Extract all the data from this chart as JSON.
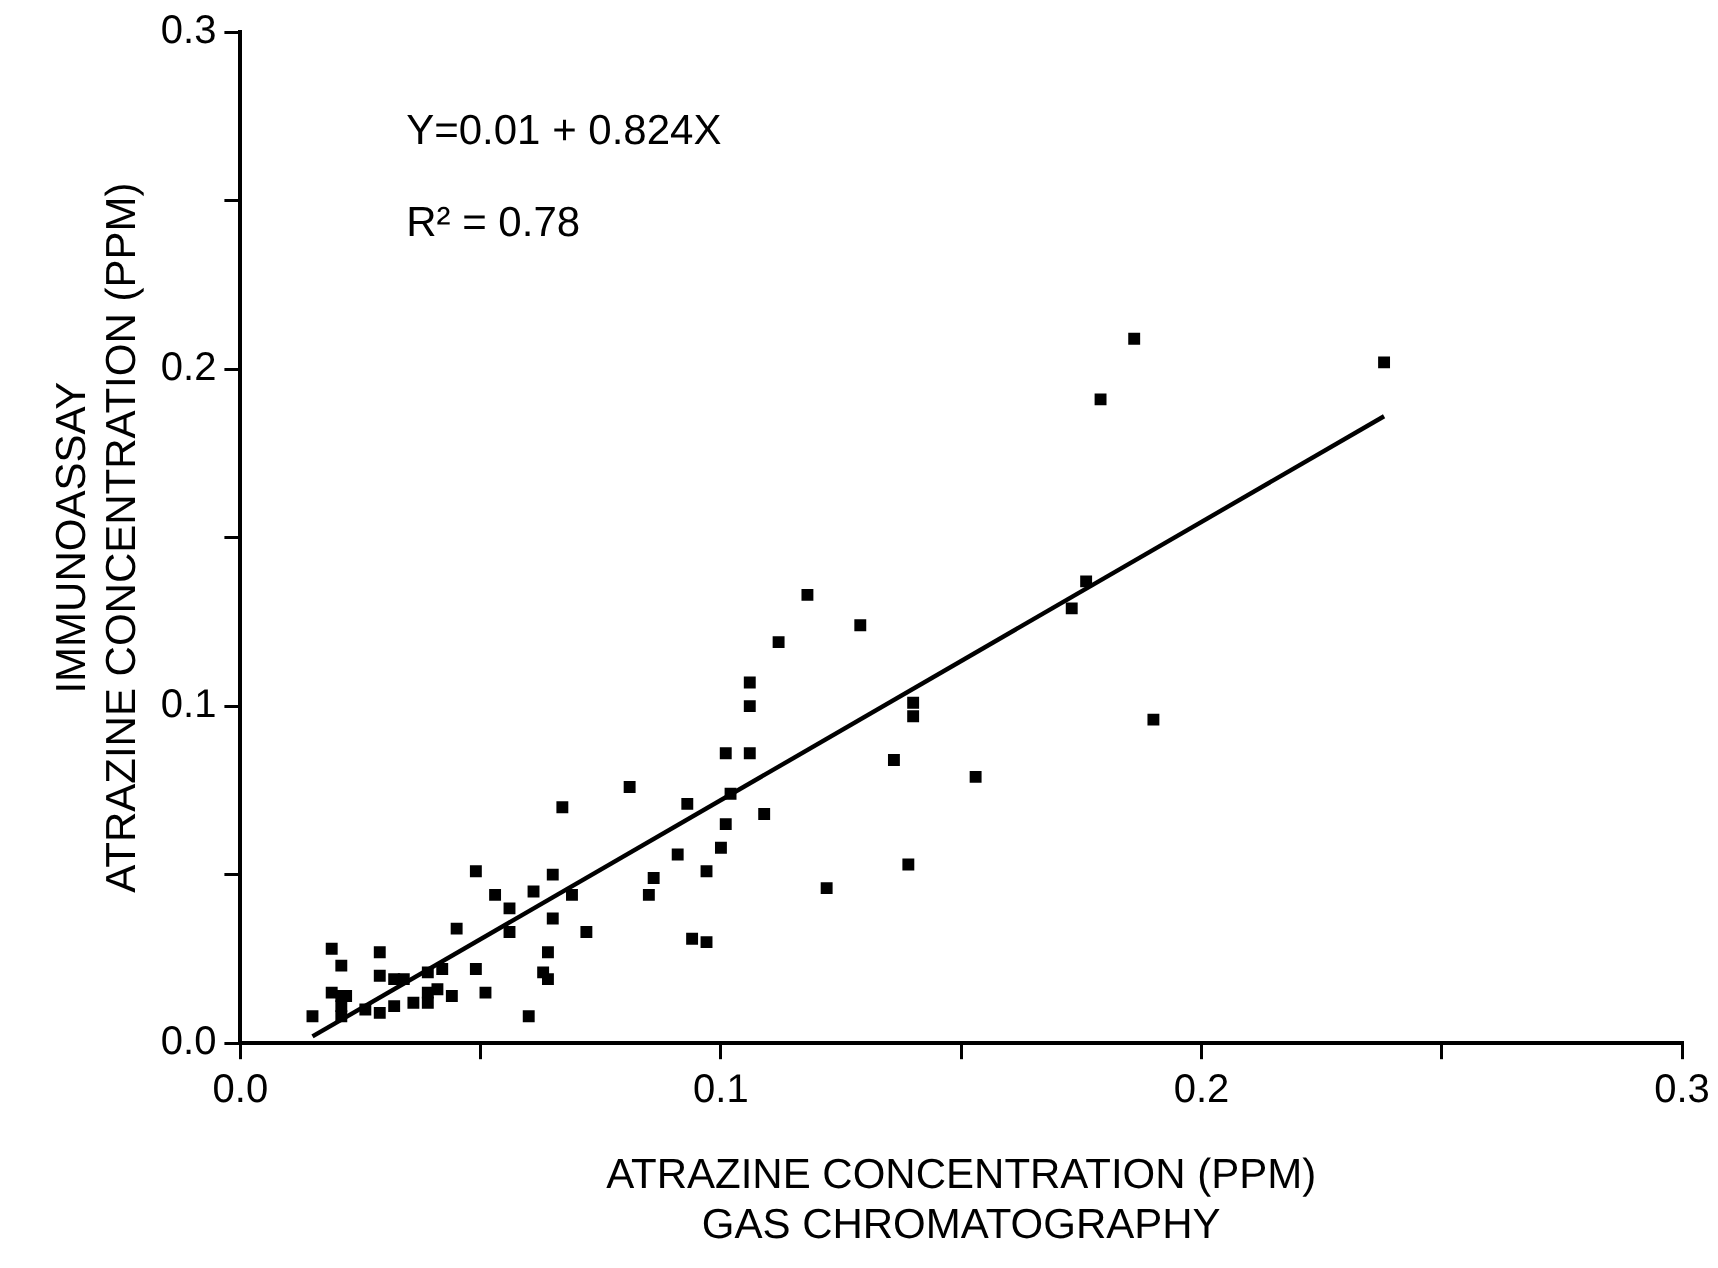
{
  "chart_data": {
    "type": "scatter",
    "xlabel": "ATRAZINE CONCENTRATION (PPM)\nGAS CHROMATOGRAPHY",
    "ylabel": "IMMUNOASSAY\nATRAZINE CONCENTRATION (PPM)",
    "annotations": [
      "Y=0.01 + 0.824X",
      "R² = 0.78"
    ],
    "xlim": [
      0,
      0.3
    ],
    "ylim": [
      0,
      0.3
    ],
    "xticks": [
      {
        "value": 0,
        "label": "0.0"
      },
      {
        "value": 0.05,
        "label": null
      },
      {
        "value": 0.1,
        "label": "0.1"
      },
      {
        "value": 0.15,
        "label": null
      },
      {
        "value": 0.2,
        "label": "0.2"
      },
      {
        "value": 0.25,
        "label": null
      },
      {
        "value": 0.3,
        "label": "0.3"
      }
    ],
    "yticks": [
      {
        "value": 0,
        "label": "0.0"
      },
      {
        "value": 0.05,
        "label": null
      },
      {
        "value": 0.1,
        "label": "0.1"
      },
      {
        "value": 0.15,
        "label": null
      },
      {
        "value": 0.2,
        "label": "0.2"
      },
      {
        "value": 0.25,
        "label": null
      },
      {
        "value": 0.3,
        "label": "0.3"
      }
    ],
    "grid": false,
    "legend": false,
    "marker": "square",
    "series": [
      {
        "color": "#000000",
        "x": [
          0.067,
          0.093,
          0.101,
          0.1,
          0.091,
          0.097,
          0.086,
          0.085,
          0.049,
          0.053,
          0.056,
          0.061,
          0.065,
          0.065,
          0.069,
          0.056,
          0.045,
          0.072,
          0.094,
          0.097,
          0.064,
          0.063,
          0.064,
          0.06,
          0.049,
          0.051,
          0.044,
          0.039,
          0.042,
          0.039,
          0.041,
          0.039,
          0.036,
          0.032,
          0.029,
          0.032,
          0.034,
          0.029,
          0.029,
          0.026,
          0.019,
          0.021,
          0.019,
          0.021,
          0.022,
          0.021,
          0.021,
          0.015,
          0.118,
          0.129,
          0.112,
          0.106,
          0.106,
          0.101,
          0.106,
          0.081,
          0.102,
          0.109,
          0.122,
          0.139,
          0.14,
          0.14,
          0.136,
          0.153,
          0.173,
          0.186,
          0.179,
          0.238,
          0.176,
          0.19
        ],
        "values": [
          0.07,
          0.071,
          0.065,
          0.058,
          0.056,
          0.051,
          0.049,
          0.044,
          0.051,
          0.044,
          0.04,
          0.045,
          0.05,
          0.037,
          0.044,
          0.033,
          0.034,
          0.033,
          0.031,
          0.03,
          0.027,
          0.021,
          0.019,
          0.008,
          0.022,
          0.015,
          0.014,
          0.021,
          0.022,
          0.015,
          0.016,
          0.012,
          0.012,
          0.011,
          0.02,
          0.019,
          0.019,
          0.027,
          0.009,
          0.01,
          0.028,
          0.023,
          0.015,
          0.014,
          0.014,
          0.011,
          0.008,
          0.008,
          0.133,
          0.124,
          0.119,
          0.107,
          0.1,
          0.086,
          0.086,
          0.076,
          0.074,
          0.068,
          0.046,
          0.053,
          0.101,
          0.097,
          0.084,
          0.079,
          0.129,
          0.209,
          0.191,
          0.202,
          0.137,
          0.096
        ]
      },
      {
        "type": "line",
        "color": "#000000",
        "marker": "none",
        "x": [
          0.015,
          0.238
        ],
        "values": [
          0.002,
          0.186
        ]
      }
    ]
  }
}
